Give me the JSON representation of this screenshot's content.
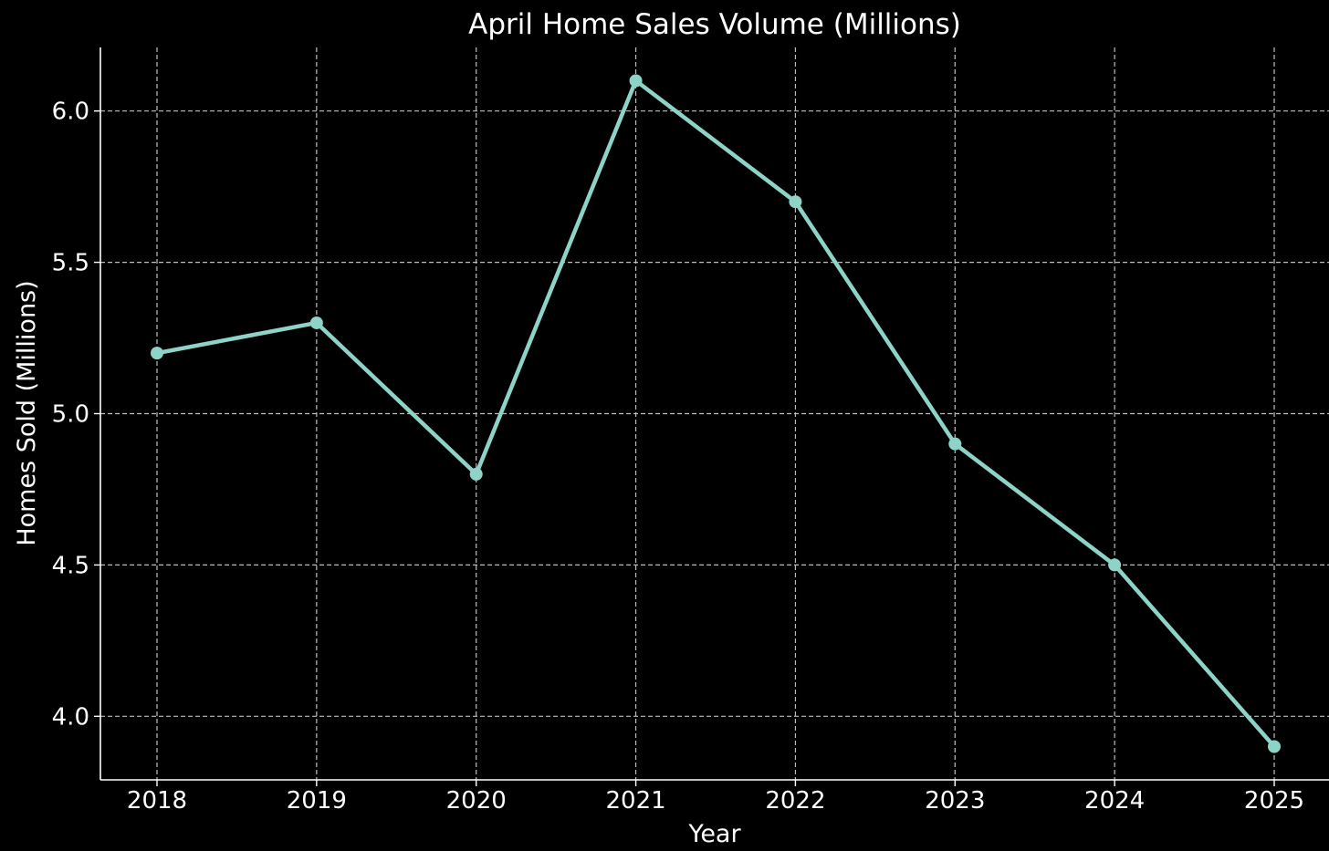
{
  "chart_data": {
    "type": "line",
    "title": "April Home Sales Volume (Millions)",
    "xlabel": "Year",
    "ylabel": "Homes Sold (Millions)",
    "categories": [
      "2018",
      "2019",
      "2020",
      "2021",
      "2022",
      "2023",
      "2024",
      "2025"
    ],
    "series": [
      {
        "values": [
          5.2,
          5.3,
          4.8,
          6.1,
          5.7,
          4.9,
          4.5,
          3.9
        ],
        "color": "#8dd3c7"
      }
    ],
    "ylim": [
      3.79,
      6.21
    ],
    "yticks": [
      4.0,
      4.5,
      5.0,
      5.5,
      6.0
    ],
    "ytick_labels": [
      "4.0",
      "4.5",
      "5.0",
      "5.5",
      "6.0"
    ],
    "grid": true,
    "background": "#000000",
    "text_color": "#ffffff"
  }
}
